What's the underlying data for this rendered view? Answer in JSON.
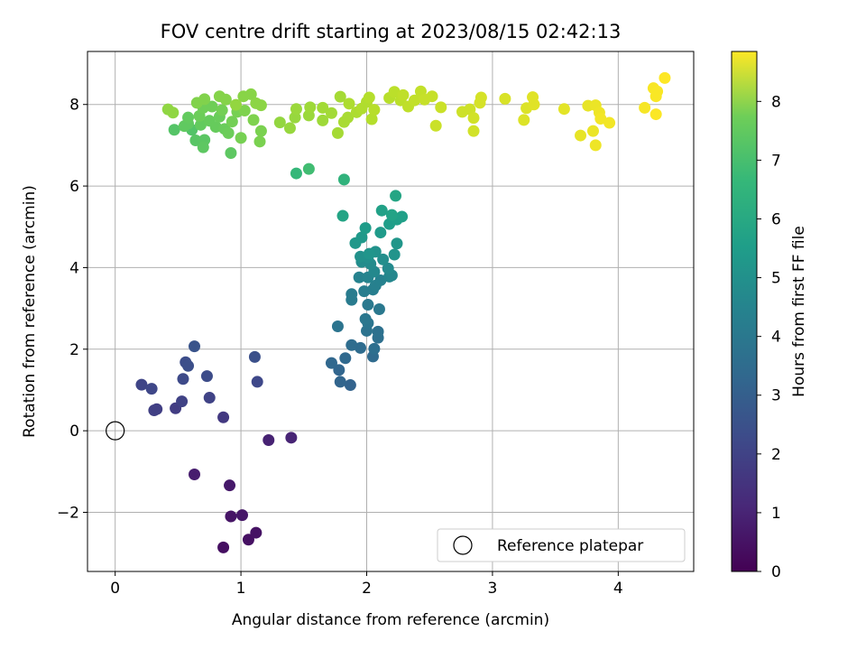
{
  "chart_data": {
    "type": "scatter",
    "title": "FOV centre drift starting at 2023/08/15 02:42:13",
    "xlabel": "Angular distance from reference (arcmin)",
    "ylabel": "Rotation from reference (arcmin)",
    "xlim": [
      -0.22,
      4.6
    ],
    "ylim": [
      -3.45,
      9.3
    ],
    "xticks": [
      0,
      1,
      2,
      3,
      4
    ],
    "xtick_labels": [
      "0",
      "1",
      "2",
      "3",
      "4"
    ],
    "yticks": [
      -2,
      0,
      2,
      4,
      6,
      8
    ],
    "ytick_labels": [
      "−2",
      "0",
      "2",
      "4",
      "6",
      "8"
    ],
    "grid": true,
    "legend": {
      "position": "lower-right",
      "entries": [
        "Reference platepar"
      ]
    },
    "reference_point": {
      "x": 0,
      "y": 0,
      "label": "Reference platepar"
    },
    "colorbar": {
      "label": "Hours from first FF file",
      "min": 0,
      "max": 8.85,
      "ticks": [
        0,
        1,
        2,
        3,
        4,
        5,
        6,
        7,
        8
      ],
      "tick_labels": [
        "0",
        "1",
        "2",
        "3",
        "4",
        "5",
        "6",
        "7",
        "8"
      ],
      "colormap": "viridis"
    },
    "points": [
      {
        "x": 0.86,
        "y": -2.86,
        "c": 0.35
      },
      {
        "x": 1.06,
        "y": -2.67,
        "c": 0.4
      },
      {
        "x": 1.12,
        "y": -2.5,
        "c": 0.45
      },
      {
        "x": 0.92,
        "y": -2.1,
        "c": 0.5
      },
      {
        "x": 1.01,
        "y": -2.07,
        "c": 0.55
      },
      {
        "x": 0.91,
        "y": -1.34,
        "c": 0.6
      },
      {
        "x": 0.63,
        "y": -1.07,
        "c": 0.7
      },
      {
        "x": 1.22,
        "y": -0.23,
        "c": 0.85
      },
      {
        "x": 1.4,
        "y": -0.17,
        "c": 0.9
      },
      {
        "x": 0.86,
        "y": 0.33,
        "c": 1.5
      },
      {
        "x": 0.48,
        "y": 0.55,
        "c": 1.6
      },
      {
        "x": 0.33,
        "y": 0.53,
        "c": 1.65
      },
      {
        "x": 0.31,
        "y": 0.5,
        "c": 1.7
      },
      {
        "x": 0.53,
        "y": 0.72,
        "c": 1.75
      },
      {
        "x": 0.75,
        "y": 0.81,
        "c": 1.8
      },
      {
        "x": 0.21,
        "y": 1.13,
        "c": 1.85
      },
      {
        "x": 0.29,
        "y": 1.03,
        "c": 1.9
      },
      {
        "x": 1.13,
        "y": 1.2,
        "c": 1.95
      },
      {
        "x": 0.54,
        "y": 1.27,
        "c": 2.0
      },
      {
        "x": 0.73,
        "y": 1.34,
        "c": 2.05
      },
      {
        "x": 0.56,
        "y": 1.68,
        "c": 2.1
      },
      {
        "x": 0.58,
        "y": 1.59,
        "c": 2.15
      },
      {
        "x": 1.11,
        "y": 1.81,
        "c": 2.2
      },
      {
        "x": 0.63,
        "y": 2.07,
        "c": 2.3
      },
      {
        "x": 1.87,
        "y": 1.12,
        "c": 2.8
      },
      {
        "x": 1.79,
        "y": 1.2,
        "c": 2.85
      },
      {
        "x": 1.78,
        "y": 1.49,
        "c": 2.9
      },
      {
        "x": 1.72,
        "y": 1.66,
        "c": 2.95
      },
      {
        "x": 1.83,
        "y": 1.78,
        "c": 3.0
      },
      {
        "x": 2.05,
        "y": 1.82,
        "c": 3.05
      },
      {
        "x": 1.95,
        "y": 2.03,
        "c": 3.1
      },
      {
        "x": 1.88,
        "y": 2.1,
        "c": 3.15
      },
      {
        "x": 2.06,
        "y": 2.01,
        "c": 3.2
      },
      {
        "x": 2.09,
        "y": 2.28,
        "c": 3.25
      },
      {
        "x": 2.09,
        "y": 2.43,
        "c": 3.3
      },
      {
        "x": 2.0,
        "y": 2.45,
        "c": 3.35
      },
      {
        "x": 1.77,
        "y": 2.56,
        "c": 3.4
      },
      {
        "x": 2.01,
        "y": 2.64,
        "c": 3.45
      },
      {
        "x": 1.99,
        "y": 2.74,
        "c": 3.5
      },
      {
        "x": 2.1,
        "y": 2.98,
        "c": 3.55
      },
      {
        "x": 2.01,
        "y": 3.09,
        "c": 3.6
      },
      {
        "x": 1.88,
        "y": 3.21,
        "c": 3.65
      },
      {
        "x": 1.88,
        "y": 3.35,
        "c": 3.7
      },
      {
        "x": 1.98,
        "y": 3.42,
        "c": 3.75
      },
      {
        "x": 2.05,
        "y": 3.46,
        "c": 3.8
      },
      {
        "x": 2.07,
        "y": 3.56,
        "c": 3.85
      },
      {
        "x": 2.11,
        "y": 3.69,
        "c": 3.9
      },
      {
        "x": 1.94,
        "y": 3.76,
        "c": 3.95
      },
      {
        "x": 2.01,
        "y": 3.76,
        "c": 4.0
      },
      {
        "x": 2.18,
        "y": 3.78,
        "c": 4.05
      },
      {
        "x": 2.2,
        "y": 3.81,
        "c": 4.1
      },
      {
        "x": 2.06,
        "y": 3.9,
        "c": 4.15
      },
      {
        "x": 2.17,
        "y": 3.98,
        "c": 4.2
      },
      {
        "x": 2.03,
        "y": 4.09,
        "c": 4.25
      },
      {
        "x": 1.96,
        "y": 4.14,
        "c": 4.3
      },
      {
        "x": 2.13,
        "y": 4.2,
        "c": 4.35
      },
      {
        "x": 2.01,
        "y": 4.25,
        "c": 4.4
      },
      {
        "x": 1.95,
        "y": 4.27,
        "c": 4.45
      },
      {
        "x": 2.07,
        "y": 4.39,
        "c": 4.5
      },
      {
        "x": 2.22,
        "y": 4.32,
        "c": 4.55
      },
      {
        "x": 2.02,
        "y": 4.34,
        "c": 4.6
      },
      {
        "x": 2.24,
        "y": 4.59,
        "c": 4.65
      },
      {
        "x": 1.91,
        "y": 4.6,
        "c": 4.7
      },
      {
        "x": 1.96,
        "y": 4.74,
        "c": 4.75
      },
      {
        "x": 2.11,
        "y": 4.86,
        "c": 4.8
      },
      {
        "x": 1.99,
        "y": 4.97,
        "c": 4.85
      },
      {
        "x": 2.18,
        "y": 5.07,
        "c": 4.9
      },
      {
        "x": 2.24,
        "y": 5.18,
        "c": 4.95
      },
      {
        "x": 2.28,
        "y": 5.25,
        "c": 5.0
      },
      {
        "x": 2.12,
        "y": 5.4,
        "c": 5.05
      },
      {
        "x": 2.2,
        "y": 5.29,
        "c": 5.1
      },
      {
        "x": 1.81,
        "y": 5.27,
        "c": 5.15
      },
      {
        "x": 2.23,
        "y": 5.76,
        "c": 5.2
      },
      {
        "x": 1.82,
        "y": 6.16,
        "c": 5.7
      },
      {
        "x": 1.44,
        "y": 6.31,
        "c": 5.9
      },
      {
        "x": 1.54,
        "y": 6.42,
        "c": 6.1
      },
      {
        "x": 0.61,
        "y": 7.38,
        "c": 6.4
      },
      {
        "x": 0.47,
        "y": 7.38,
        "c": 6.45
      },
      {
        "x": 0.64,
        "y": 7.12,
        "c": 6.5
      },
      {
        "x": 0.71,
        "y": 7.13,
        "c": 6.55
      },
      {
        "x": 0.7,
        "y": 6.95,
        "c": 6.6
      },
      {
        "x": 0.92,
        "y": 6.81,
        "c": 6.6
      },
      {
        "x": 0.55,
        "y": 7.47,
        "c": 6.65
      },
      {
        "x": 0.58,
        "y": 7.53,
        "c": 6.65
      },
      {
        "x": 0.58,
        "y": 7.68,
        "c": 6.7
      },
      {
        "x": 0.68,
        "y": 7.5,
        "c": 6.7
      },
      {
        "x": 0.75,
        "y": 7.6,
        "c": 6.75
      },
      {
        "x": 0.8,
        "y": 7.45,
        "c": 6.75
      },
      {
        "x": 0.83,
        "y": 7.7,
        "c": 6.8
      },
      {
        "x": 0.87,
        "y": 7.4,
        "c": 6.8
      },
      {
        "x": 0.9,
        "y": 7.3,
        "c": 6.85
      },
      {
        "x": 0.67,
        "y": 7.72,
        "c": 6.85
      },
      {
        "x": 0.7,
        "y": 7.92,
        "c": 6.9
      },
      {
        "x": 0.77,
        "y": 7.95,
        "c": 6.9
      },
      {
        "x": 0.85,
        "y": 7.86,
        "c": 6.95
      },
      {
        "x": 0.93,
        "y": 7.58,
        "c": 6.95
      },
      {
        "x": 0.97,
        "y": 7.82,
        "c": 7.0
      },
      {
        "x": 1.0,
        "y": 7.18,
        "c": 7.0
      },
      {
        "x": 1.15,
        "y": 7.09,
        "c": 7.05
      },
      {
        "x": 1.16,
        "y": 7.35,
        "c": 7.05
      },
      {
        "x": 1.1,
        "y": 7.62,
        "c": 7.1
      },
      {
        "x": 1.03,
        "y": 7.85,
        "c": 7.1
      },
      {
        "x": 0.65,
        "y": 8.04,
        "c": 7.15
      },
      {
        "x": 0.71,
        "y": 8.13,
        "c": 7.15
      },
      {
        "x": 0.83,
        "y": 8.2,
        "c": 7.2
      },
      {
        "x": 0.88,
        "y": 8.12,
        "c": 7.2
      },
      {
        "x": 1.02,
        "y": 8.2,
        "c": 7.25
      },
      {
        "x": 1.08,
        "y": 8.25,
        "c": 7.25
      },
      {
        "x": 1.12,
        "y": 8.03,
        "c": 7.3
      },
      {
        "x": 1.16,
        "y": 7.98,
        "c": 7.3
      },
      {
        "x": 0.42,
        "y": 7.88,
        "c": 7.35
      },
      {
        "x": 0.46,
        "y": 7.8,
        "c": 7.35
      },
      {
        "x": 0.96,
        "y": 7.99,
        "c": 7.4
      },
      {
        "x": 1.31,
        "y": 7.56,
        "c": 7.4
      },
      {
        "x": 1.39,
        "y": 7.42,
        "c": 7.45
      },
      {
        "x": 1.43,
        "y": 7.68,
        "c": 7.45
      },
      {
        "x": 1.44,
        "y": 7.89,
        "c": 7.5
      },
      {
        "x": 1.54,
        "y": 7.73,
        "c": 7.5
      },
      {
        "x": 1.55,
        "y": 7.93,
        "c": 7.55
      },
      {
        "x": 1.65,
        "y": 7.61,
        "c": 7.55
      },
      {
        "x": 1.65,
        "y": 7.92,
        "c": 7.6
      },
      {
        "x": 1.72,
        "y": 7.79,
        "c": 7.6
      },
      {
        "x": 1.77,
        "y": 7.3,
        "c": 7.65
      },
      {
        "x": 1.79,
        "y": 8.19,
        "c": 7.65
      },
      {
        "x": 1.82,
        "y": 7.57,
        "c": 7.7
      },
      {
        "x": 1.85,
        "y": 7.68,
        "c": 7.7
      },
      {
        "x": 1.86,
        "y": 8.02,
        "c": 7.75
      },
      {
        "x": 1.92,
        "y": 7.81,
        "c": 7.75
      },
      {
        "x": 1.96,
        "y": 7.9,
        "c": 7.8
      },
      {
        "x": 2.0,
        "y": 8.06,
        "c": 7.8
      },
      {
        "x": 2.02,
        "y": 8.17,
        "c": 7.85
      },
      {
        "x": 2.04,
        "y": 7.64,
        "c": 7.85
      },
      {
        "x": 2.06,
        "y": 7.87,
        "c": 7.9
      },
      {
        "x": 2.18,
        "y": 8.16,
        "c": 7.9
      },
      {
        "x": 2.22,
        "y": 8.31,
        "c": 7.95
      },
      {
        "x": 2.27,
        "y": 8.1,
        "c": 7.95
      },
      {
        "x": 2.29,
        "y": 8.23,
        "c": 8.0
      },
      {
        "x": 2.33,
        "y": 7.95,
        "c": 8.0
      },
      {
        "x": 2.38,
        "y": 8.1,
        "c": 8.05
      },
      {
        "x": 2.43,
        "y": 8.32,
        "c": 8.05
      },
      {
        "x": 2.46,
        "y": 8.12,
        "c": 8.1
      },
      {
        "x": 2.52,
        "y": 8.2,
        "c": 8.1
      },
      {
        "x": 2.55,
        "y": 7.48,
        "c": 8.15
      },
      {
        "x": 2.59,
        "y": 7.93,
        "c": 8.15
      },
      {
        "x": 2.76,
        "y": 7.82,
        "c": 8.2
      },
      {
        "x": 2.82,
        "y": 7.88,
        "c": 8.2
      },
      {
        "x": 2.85,
        "y": 7.67,
        "c": 8.25
      },
      {
        "x": 2.85,
        "y": 7.35,
        "c": 8.25
      },
      {
        "x": 2.9,
        "y": 8.04,
        "c": 8.3
      },
      {
        "x": 2.91,
        "y": 8.17,
        "c": 8.3
      },
      {
        "x": 3.1,
        "y": 8.14,
        "c": 8.35
      },
      {
        "x": 3.25,
        "y": 7.62,
        "c": 8.4
      },
      {
        "x": 3.27,
        "y": 7.91,
        "c": 8.4
      },
      {
        "x": 3.32,
        "y": 8.18,
        "c": 8.45
      },
      {
        "x": 3.33,
        "y": 8.0,
        "c": 8.45
      },
      {
        "x": 3.57,
        "y": 7.89,
        "c": 8.5
      },
      {
        "x": 3.7,
        "y": 7.24,
        "c": 8.55
      },
      {
        "x": 3.76,
        "y": 7.97,
        "c": 8.55
      },
      {
        "x": 3.8,
        "y": 7.35,
        "c": 8.6
      },
      {
        "x": 3.82,
        "y": 7.98,
        "c": 8.6
      },
      {
        "x": 3.82,
        "y": 7.0,
        "c": 8.65
      },
      {
        "x": 3.85,
        "y": 7.8,
        "c": 8.65
      },
      {
        "x": 3.86,
        "y": 7.65,
        "c": 8.7
      },
      {
        "x": 3.93,
        "y": 7.55,
        "c": 8.7
      },
      {
        "x": 4.21,
        "y": 7.92,
        "c": 8.75
      },
      {
        "x": 4.28,
        "y": 8.4,
        "c": 8.78
      },
      {
        "x": 4.3,
        "y": 8.2,
        "c": 8.8
      },
      {
        "x": 4.31,
        "y": 8.32,
        "c": 8.8
      },
      {
        "x": 4.3,
        "y": 7.76,
        "c": 8.82
      },
      {
        "x": 4.37,
        "y": 8.65,
        "c": 8.85
      }
    ]
  }
}
